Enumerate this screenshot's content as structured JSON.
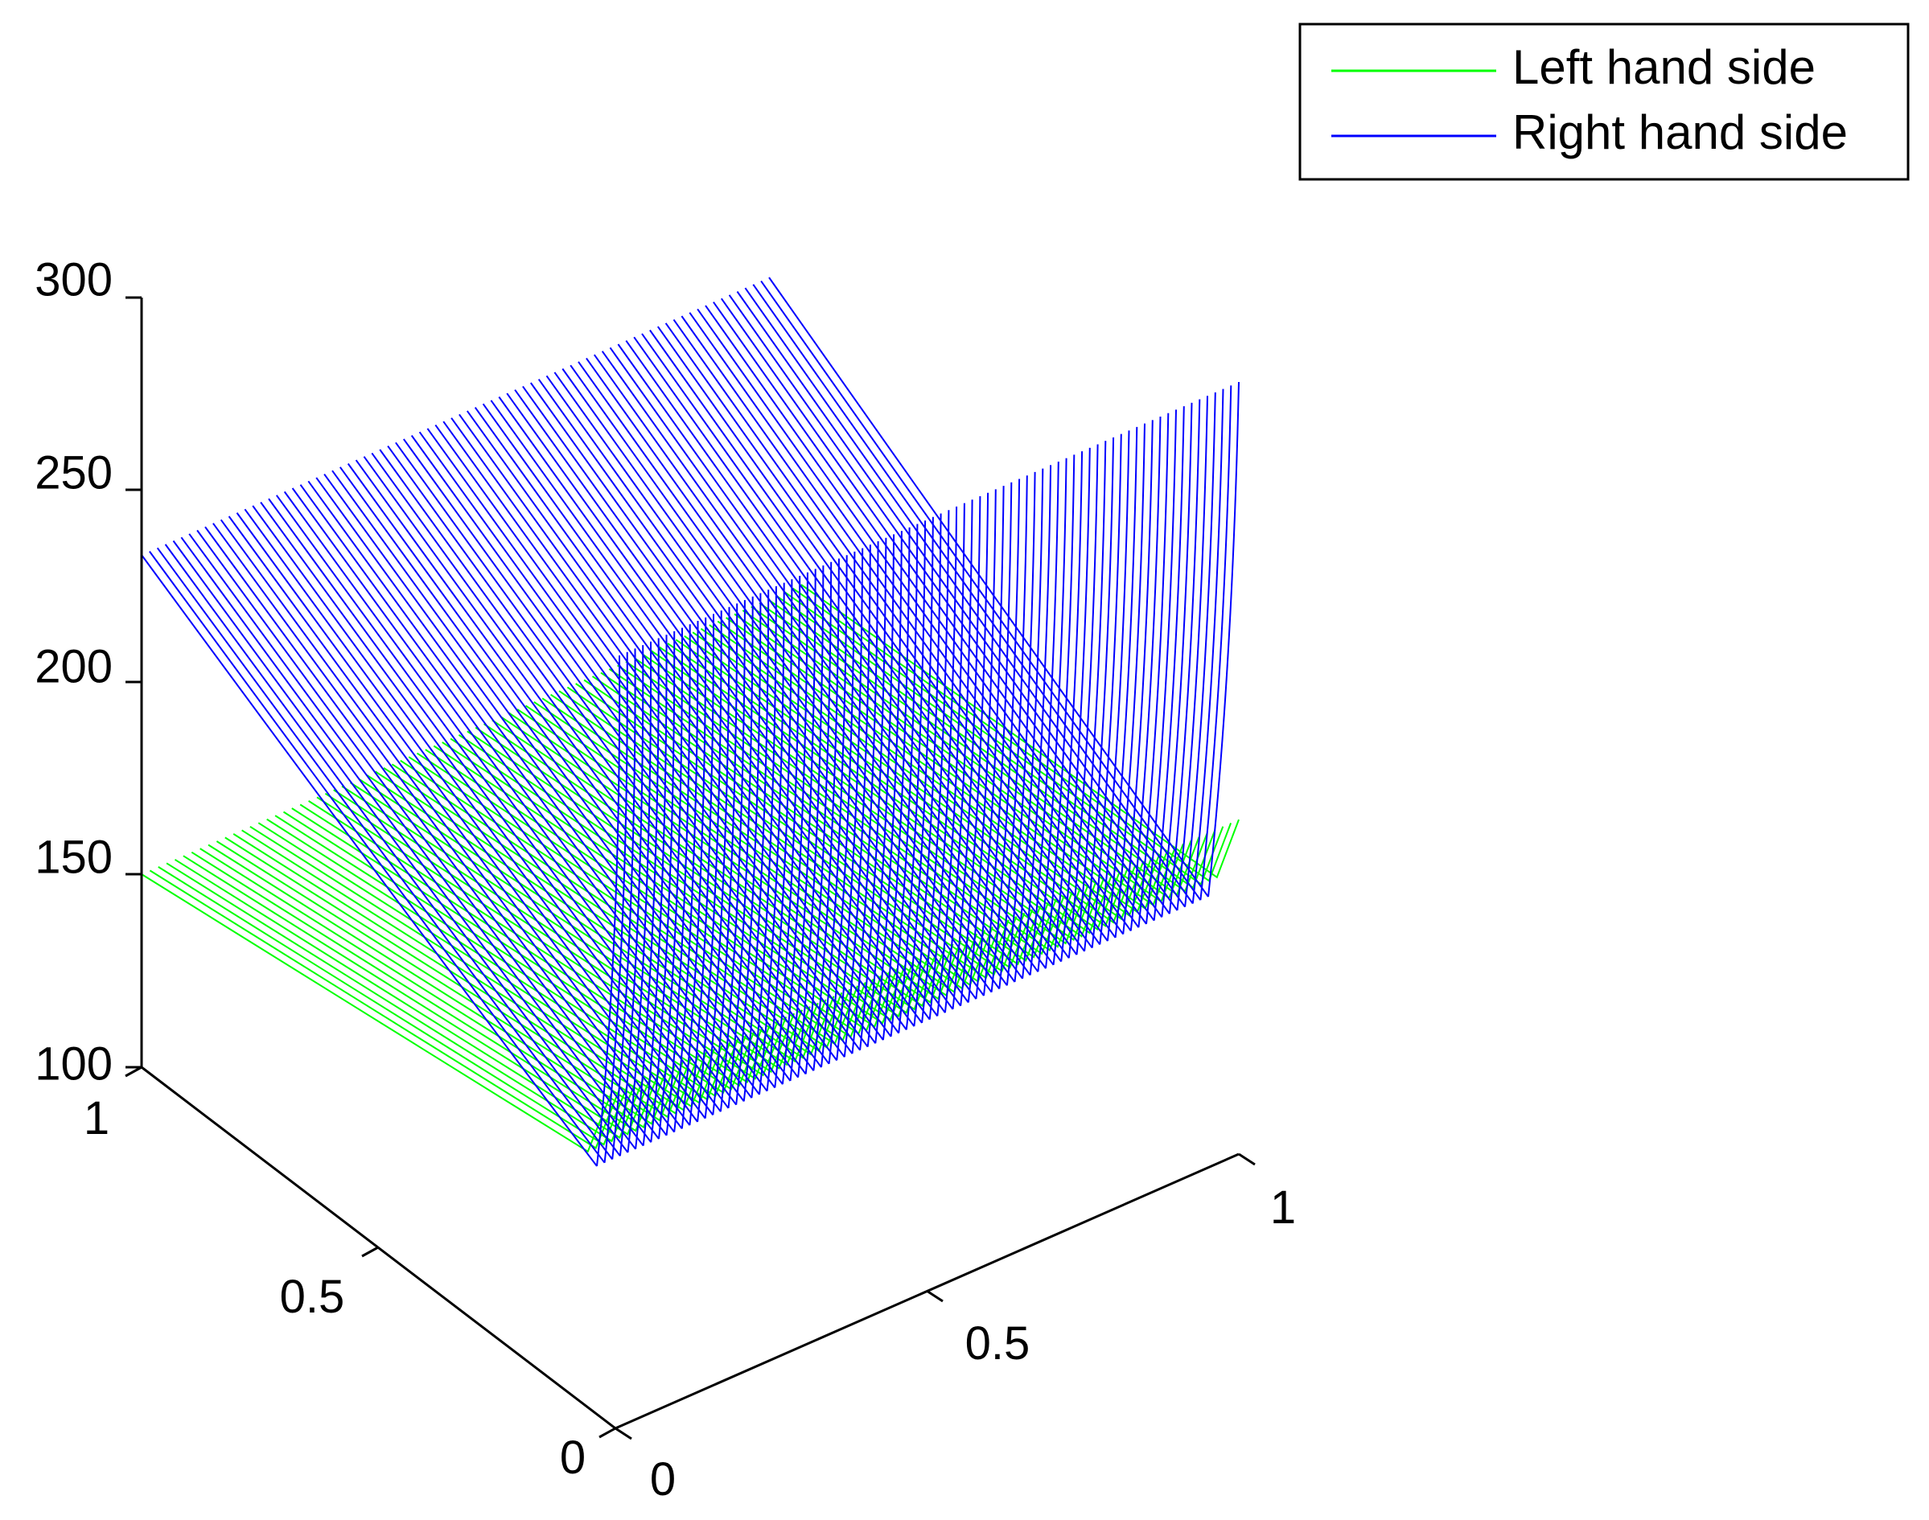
{
  "chart_data": {
    "type": "3d-line",
    "title": "",
    "xlabel": "",
    "ylabel": "",
    "zlabel": "",
    "x_ticks": [
      "0",
      "0.5",
      "1"
    ],
    "y_ticks": [
      "0",
      "0.5",
      "1"
    ],
    "z_ticks": [
      "100",
      "150",
      "200",
      "250",
      "300"
    ],
    "x_range": [
      0,
      1
    ],
    "y_range": [
      0,
      1
    ],
    "z_range": [
      100,
      300
    ],
    "grid": false,
    "legend_position": "top-right",
    "series": [
      {
        "name": "Left hand side",
        "color": "#00ff00",
        "line_count": 80,
        "profile_s": [
          0,
          0.2,
          0.4,
          0.6,
          0.8,
          0.95,
          1.0
        ],
        "profile_z": [
          150,
          150,
          150,
          150,
          150,
          150,
          131
        ]
      },
      {
        "name": "Right hand side",
        "color": "#0000ff",
        "line_count": 80,
        "front_edge_x": [
          0,
          0.25,
          0.5,
          0.75,
          1.0
        ],
        "front_edge_z": [
          150,
          150,
          150,
          150,
          150
        ],
        "back_edge_x": [
          0,
          0.25,
          0.5,
          0.75,
          1.0
        ],
        "back_edge_z": [
          233,
          231,
          228,
          227,
          225
        ],
        "far_right_ridge_z": [
          228,
          228,
          229,
          232,
          256
        ]
      }
    ]
  }
}
